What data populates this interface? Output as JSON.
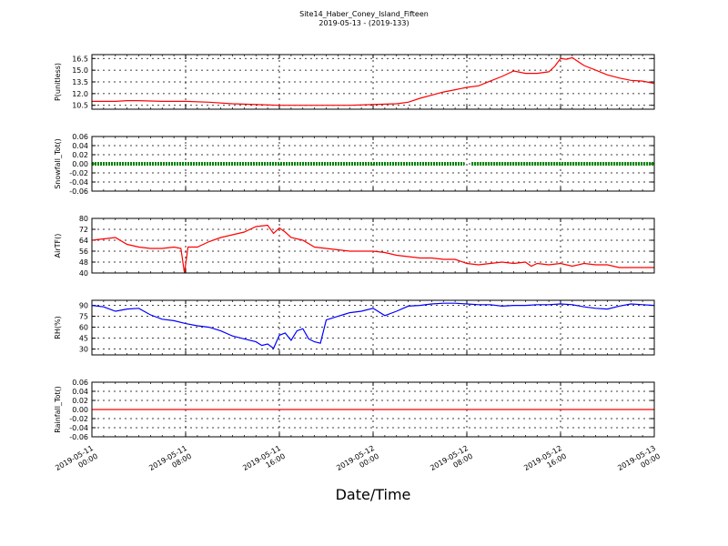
{
  "title": "Site14_Haber_Coney_Island_Fifteen",
  "subtitle": "2019-05-13 - (2019-133)",
  "xlabel": "Date/Time",
  "x_tick_labels": [
    [
      "2019-05-11",
      "00:00"
    ],
    [
      "2019-05-11",
      "08:00"
    ],
    [
      "2019-05-11",
      "16:00"
    ],
    [
      "2019-05-12",
      "00:00"
    ],
    [
      "2019-05-12",
      "08:00"
    ],
    [
      "2019-05-12",
      "16:00"
    ],
    [
      "2019-05-13",
      "00:00"
    ]
  ],
  "chart_data": [
    {
      "type": "line",
      "ylabel": "P(unitless)",
      "ylim": [
        10.0,
        17.0
      ],
      "yticks": [
        "10.5",
        "12.0",
        "13.5",
        "15.0",
        "16.5"
      ],
      "xlim_hours": [
        0,
        48
      ],
      "grid": true,
      "color": "#ff0000",
      "x": [
        0,
        2,
        3,
        4,
        6,
        8,
        10,
        12,
        14,
        16,
        18,
        20,
        22,
        24,
        26,
        27,
        28,
        29,
        30,
        31,
        32,
        33,
        34,
        35,
        36,
        37,
        38,
        39,
        39.5,
        40,
        40.5,
        41,
        42,
        43,
        44,
        45,
        46,
        47,
        48
      ],
      "y": [
        11.0,
        11.0,
        11.1,
        11.1,
        11.0,
        11.0,
        10.9,
        10.7,
        10.6,
        10.5,
        10.5,
        10.5,
        10.5,
        10.6,
        10.7,
        10.9,
        11.4,
        11.8,
        12.2,
        12.5,
        12.8,
        13.0,
        13.6,
        14.2,
        14.9,
        14.6,
        14.6,
        14.8,
        15.5,
        16.5,
        16.4,
        16.6,
        15.6,
        15.0,
        14.4,
        14.0,
        13.7,
        13.6,
        13.3
      ]
    },
    {
      "type": "scatter",
      "ylabel": "Snowfall_Tot()",
      "ylim": [
        -0.06,
        0.06
      ],
      "yticks": [
        "-0.06",
        "-0.04",
        "-0.02",
        "0.00",
        "0.02",
        "0.04",
        "0.06"
      ],
      "xlim_hours": [
        0,
        48
      ],
      "grid": true,
      "color": "#008000",
      "segments": [
        [
          0,
          31.8
        ],
        [
          32.4,
          48
        ]
      ],
      "value": 0.0
    },
    {
      "type": "line",
      "ylabel": "AirTF()",
      "ylim": [
        40,
        80
      ],
      "yticks": [
        "40",
        "48",
        "56",
        "64",
        "72",
        "80"
      ],
      "xlim_hours": [
        0,
        48
      ],
      "grid": true,
      "color": "#ff0000",
      "x": [
        0,
        1,
        2,
        3,
        4,
        5,
        6,
        7,
        7.6,
        7.9,
        8.2,
        9,
        10,
        11,
        12,
        13,
        14,
        15,
        15.5,
        16,
        16.5,
        17,
        18,
        19,
        20,
        21,
        22,
        23,
        24,
        25,
        26,
        27,
        28,
        29,
        30,
        31,
        32,
        33,
        34,
        35,
        36,
        37,
        37.5,
        38,
        39,
        40,
        41,
        42,
        43,
        44,
        45,
        46,
        47,
        48
      ],
      "y": [
        64,
        65,
        66,
        61,
        59,
        58,
        58,
        59,
        58,
        40,
        59,
        59,
        63,
        66,
        68,
        70,
        74,
        75,
        69,
        73,
        70,
        66,
        64,
        59,
        58,
        57,
        56,
        56,
        56,
        55,
        53,
        52,
        51,
        51,
        50,
        50,
        47,
        46,
        47,
        48,
        47,
        48,
        45,
        47,
        46,
        47,
        45,
        47,
        46,
        46,
        44,
        44,
        44,
        44
      ]
    },
    {
      "type": "line",
      "ylabel": "RH(%)",
      "ylim": [
        22,
        97
      ],
      "yticks": [
        "30",
        "45",
        "60",
        "75",
        "90"
      ],
      "xlim_hours": [
        0,
        48
      ],
      "grid": true,
      "color": "#0000ff",
      "x": [
        0,
        1,
        2,
        3,
        4,
        5,
        6,
        7,
        8,
        9,
        10,
        11,
        12,
        13,
        14,
        14.5,
        15,
        15.5,
        16,
        16.5,
        17,
        17.5,
        18,
        18.5,
        19,
        19.5,
        20,
        21,
        22,
        23,
        24,
        25,
        26,
        27,
        28,
        29,
        30,
        31,
        32,
        33,
        34,
        35,
        36,
        37,
        38,
        39,
        40,
        41,
        42,
        43,
        44,
        45,
        46,
        47,
        48
      ],
      "y": [
        90,
        88,
        82,
        85,
        86,
        77,
        71,
        69,
        65,
        62,
        60,
        55,
        48,
        44,
        40,
        35,
        37,
        31,
        49,
        52,
        42,
        55,
        58,
        44,
        40,
        38,
        70,
        75,
        80,
        82,
        86,
        76,
        82,
        89,
        90,
        92,
        93,
        93,
        92,
        91,
        91,
        89,
        90,
        90,
        91,
        91,
        92,
        91,
        88,
        86,
        85,
        89,
        92,
        91,
        90
      ]
    },
    {
      "type": "line",
      "ylabel": "Rainfall_Tot()",
      "ylim": [
        -0.06,
        0.06
      ],
      "yticks": [
        "-0.06",
        "-0.04",
        "-0.02",
        "0.00",
        "0.02",
        "0.04",
        "0.06"
      ],
      "xlim_hours": [
        0,
        48
      ],
      "grid": true,
      "color": "#ff0000",
      "x": [
        0,
        48
      ],
      "y": [
        0.0,
        0.0
      ]
    }
  ]
}
